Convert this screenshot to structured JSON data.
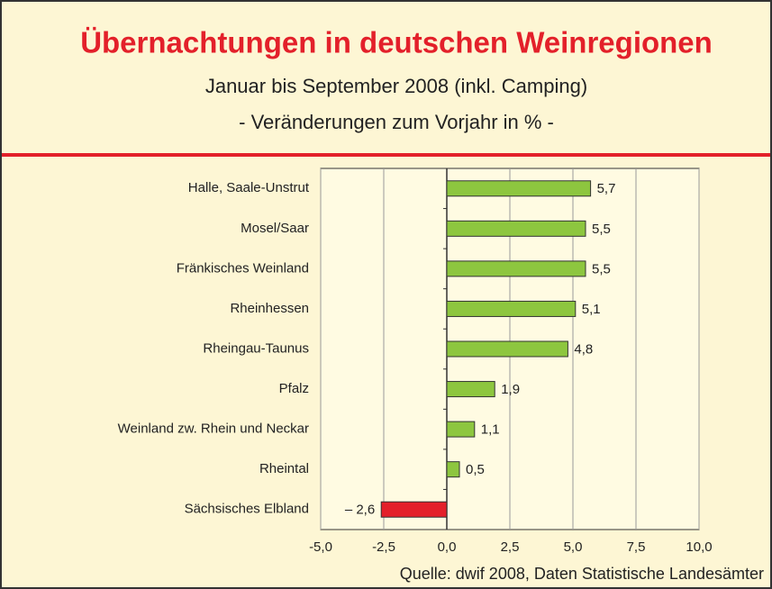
{
  "chart_data": {
    "type": "bar",
    "orientation": "horizontal",
    "title": "Übernachtungen in deutschen Weinregionen",
    "subtitle": [
      "Januar bis September 2008 (inkl. Camping)",
      "- Veränderungen zum Vorjahr in % -"
    ],
    "source": "Quelle: dwif 2008, Daten Statistische Landesämter",
    "categories": [
      "Halle, Saale-Unstrut",
      "Mosel/Saar",
      "Fränkisches Weinland",
      "Rheinhessen",
      "Rheingau-Taunus",
      "Pfalz",
      "Weinland zw. Rhein und Neckar",
      "Rheintal",
      "Sächsisches Elbland"
    ],
    "values": [
      5.7,
      5.5,
      5.5,
      5.1,
      4.8,
      1.9,
      1.1,
      0.5,
      -2.6
    ],
    "value_labels": [
      "5,7",
      "5,5",
      "5,5",
      "5,1",
      "4,8",
      "1,9",
      "1,1",
      "0,5",
      "– 2,6"
    ],
    "colors": [
      "#8dc63f",
      "#8dc63f",
      "#8dc63f",
      "#8dc63f",
      "#8dc63f",
      "#8dc63f",
      "#8dc63f",
      "#8dc63f",
      "#e3202a"
    ],
    "xlim": [
      -5,
      10
    ],
    "xticks": [
      {
        "value": -5,
        "label": "-5,0"
      },
      {
        "value": -2.5,
        "label": "-2,5"
      },
      {
        "value": 0,
        "label": "0,0"
      },
      {
        "value": 2.5,
        "label": "2,5"
      },
      {
        "value": 5,
        "label": "5,0"
      },
      {
        "value": 7.5,
        "label": "7,5"
      },
      {
        "value": 10,
        "label": "10,0"
      }
    ],
    "grid": true
  }
}
